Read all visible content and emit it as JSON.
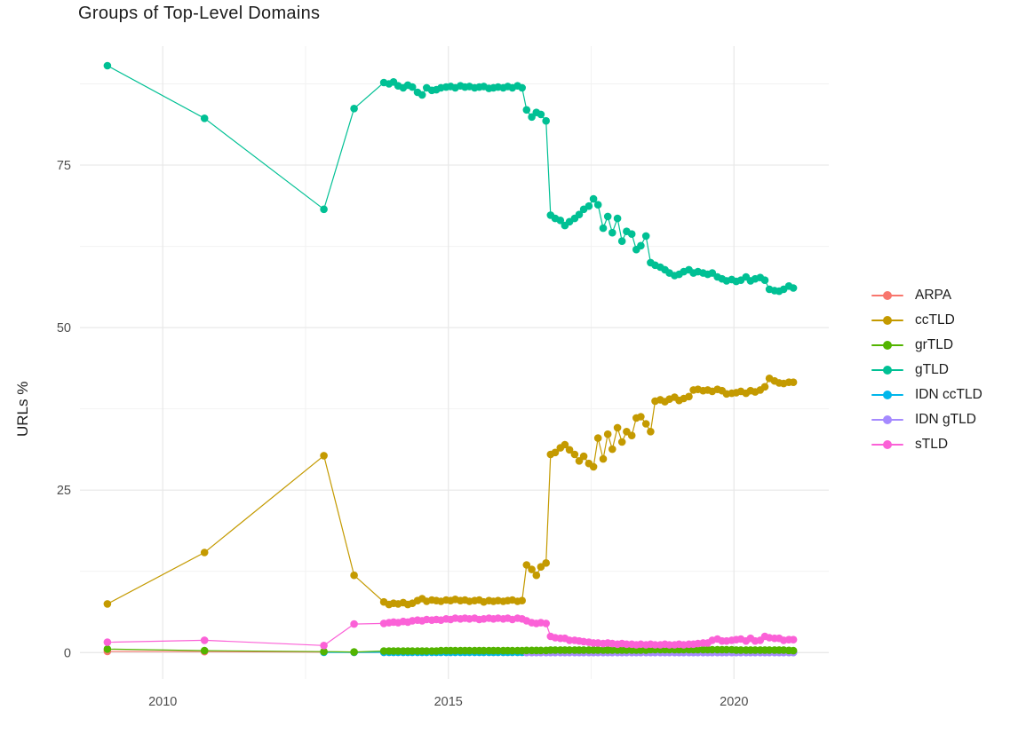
{
  "chart_data": {
    "type": "line",
    "title": "Groups of Top-Level Domains",
    "xlabel": "",
    "ylabel": "URLs %",
    "x_tick_labels": [
      "2010",
      "2015",
      "2020"
    ],
    "x_tick_values": [
      2010,
      2015,
      2020
    ],
    "y_tick_labels": [
      "0",
      "25",
      "50",
      "75"
    ],
    "y_tick_values": [
      0,
      25,
      50,
      75
    ],
    "xlim": [
      2008.55,
      2021.66
    ],
    "ylim": [
      -4.05,
      93.3
    ],
    "grid": "major+minor",
    "legend_position": "right",
    "x_early": [
      2009.03,
      2010.73,
      2012.82,
      2013.35
    ],
    "x_dense": [
      2013.87,
      2013.96,
      2014.04,
      2014.12,
      2014.21,
      2014.29,
      2014.37,
      2014.46,
      2014.54,
      2014.62,
      2014.71,
      2014.79,
      2014.87,
      2014.96,
      2015.04,
      2015.12,
      2015.21,
      2015.29,
      2015.37,
      2015.46,
      2015.54,
      2015.62,
      2015.71,
      2015.79,
      2015.87,
      2015.96,
      2016.04,
      2016.12,
      2016.21,
      2016.29,
      2016.37,
      2016.46,
      2016.54,
      2016.62,
      2016.71,
      2016.79,
      2016.87,
      2016.96,
      2017.04,
      2017.12,
      2017.21,
      2017.29,
      2017.37,
      2017.46,
      2017.54,
      2017.62,
      2017.71,
      2017.79,
      2017.87,
      2017.96,
      2018.04,
      2018.12,
      2018.21,
      2018.29,
      2018.37,
      2018.46,
      2018.54,
      2018.62,
      2018.71,
      2018.79,
      2018.87,
      2018.96,
      2019.04,
      2019.12,
      2019.21,
      2019.29,
      2019.37,
      2019.46,
      2019.54,
      2019.62,
      2019.71,
      2019.79,
      2019.87,
      2019.96,
      2020.04,
      2020.12,
      2020.21,
      2020.29,
      2020.37,
      2020.46,
      2020.54,
      2020.62,
      2020.71,
      2020.79,
      2020.87,
      2020.96,
      2021.04
    ],
    "series": [
      {
        "name": "ARPA",
        "color": "#F8766D",
        "y_early": [
          0.2,
          0.15,
          0.1,
          0.05
        ],
        "y_dense": [
          0.05,
          0.05,
          0.05,
          0.05,
          0.05,
          0.05,
          0.05,
          0.05,
          0.05,
          0.05,
          0.05,
          0.05,
          0.05,
          0.05,
          0.05,
          0.05,
          0.05,
          0.05,
          0.05,
          0.05,
          0.05,
          0.05,
          0.05,
          0.05,
          0.05,
          0.05,
          0.05,
          0.05,
          0.05,
          0.05,
          0.05,
          0.05,
          0.05,
          0.05,
          0.05,
          0.05,
          0.05,
          0.05,
          0.05,
          0.05,
          0.05,
          0.05,
          0.05,
          0.05,
          0.05,
          0.05,
          0.05,
          0.05,
          0.05,
          0.05,
          0.05,
          0.05,
          0.05,
          0.05,
          0.05,
          0.05,
          0.05,
          0.05,
          0.05,
          0.05,
          0.05,
          0.05,
          0.05,
          0.05,
          0.05,
          0.05,
          0.05,
          0.05,
          0.05,
          0.05,
          0.05,
          0.05,
          0.05,
          0.05,
          0.05,
          0.05,
          0.05,
          0.05,
          0.05,
          0.05,
          0.05,
          0.05,
          0.05,
          0.05,
          0.05,
          0.05,
          0.05
        ]
      },
      {
        "name": "ccTLD",
        "color": "#C49A00",
        "y_early": [
          7.5,
          15.4,
          30.3,
          11.9
        ],
        "y_dense": [
          7.8,
          7.4,
          7.6,
          7.5,
          7.7,
          7.4,
          7.6,
          8.0,
          8.3,
          7.9,
          8.1,
          8.0,
          7.9,
          8.1,
          8.0,
          8.2,
          8.0,
          8.1,
          7.9,
          8.0,
          8.1,
          7.8,
          8.0,
          7.9,
          8.0,
          7.9,
          8.0,
          8.1,
          7.9,
          8.0,
          13.5,
          12.8,
          11.9,
          13.2,
          13.8,
          30.5,
          30.8,
          31.5,
          32.0,
          31.2,
          30.5,
          29.5,
          30.2,
          29.1,
          28.6,
          33.0,
          29.8,
          33.6,
          31.3,
          34.6,
          32.4,
          34.0,
          33.4,
          36.1,
          36.3,
          35.2,
          34.0,
          38.7,
          38.9,
          38.6,
          39.0,
          39.3,
          38.8,
          39.1,
          39.4,
          40.4,
          40.5,
          40.3,
          40.4,
          40.2,
          40.5,
          40.3,
          39.8,
          39.9,
          40.0,
          40.2,
          39.9,
          40.3,
          40.1,
          40.4,
          40.9,
          42.2,
          41.8,
          41.5,
          41.4,
          41.6,
          41.6
        ]
      },
      {
        "name": "grTLD",
        "color": "#53B400",
        "y_early": [
          0.55,
          0.3,
          0.15,
          0.1
        ],
        "y_dense": [
          0.25,
          0.25,
          0.25,
          0.25,
          0.25,
          0.25,
          0.25,
          0.25,
          0.25,
          0.25,
          0.25,
          0.25,
          0.3,
          0.3,
          0.3,
          0.3,
          0.3,
          0.3,
          0.3,
          0.3,
          0.3,
          0.3,
          0.3,
          0.3,
          0.3,
          0.3,
          0.3,
          0.3,
          0.3,
          0.3,
          0.35,
          0.35,
          0.35,
          0.35,
          0.35,
          0.4,
          0.4,
          0.4,
          0.4,
          0.4,
          0.4,
          0.4,
          0.4,
          0.4,
          0.4,
          0.4,
          0.4,
          0.4,
          0.4,
          0.4,
          0.4,
          0.4,
          0.4,
          0.4,
          0.4,
          0.4,
          0.45,
          0.45,
          0.45,
          0.45,
          0.45,
          0.45,
          0.45,
          0.45,
          0.45,
          0.45,
          0.45,
          0.45,
          0.45,
          0.45,
          0.45,
          0.45,
          0.45,
          0.45,
          0.4,
          0.4,
          0.4,
          0.4,
          0.4,
          0.4,
          0.4,
          0.4,
          0.4,
          0.4,
          0.4,
          0.35,
          0.3
        ]
      },
      {
        "name": "gTLD",
        "color": "#00C094",
        "y_early": [
          90.3,
          82.2,
          68.2,
          83.7
        ],
        "y_dense": [
          87.7,
          87.5,
          87.8,
          87.2,
          86.9,
          87.3,
          87.0,
          86.2,
          85.8,
          86.9,
          86.5,
          86.6,
          86.9,
          87.0,
          87.1,
          86.9,
          87.2,
          87.0,
          87.1,
          86.9,
          87.0,
          87.1,
          86.8,
          86.9,
          87.0,
          86.9,
          87.1,
          86.9,
          87.2,
          86.9,
          83.5,
          82.4,
          83.1,
          82.8,
          81.8,
          67.3,
          66.8,
          66.5,
          65.7,
          66.3,
          66.8,
          67.4,
          68.2,
          68.7,
          69.8,
          68.9,
          65.3,
          67.1,
          64.6,
          66.8,
          63.3,
          64.8,
          64.4,
          62.0,
          62.6,
          64.1,
          60.0,
          59.6,
          59.3,
          58.9,
          58.4,
          58.0,
          58.2,
          58.6,
          58.9,
          58.4,
          58.6,
          58.4,
          58.2,
          58.4,
          57.8,
          57.5,
          57.2,
          57.4,
          57.1,
          57.3,
          57.8,
          57.2,
          57.5,
          57.7,
          57.3,
          55.9,
          55.7,
          55.6,
          55.9,
          56.4,
          56.1
        ]
      },
      {
        "name": "IDN ccTLD",
        "color": "#00B6EB",
        "y_early": [
          null,
          null,
          0.05,
          0.05
        ],
        "y_dense": [
          0.05,
          0.05,
          0.05,
          0.05,
          0.05,
          0.05,
          0.05,
          0.05,
          0.05,
          0.05,
          0.05,
          0.05,
          0.05,
          0.05,
          0.05,
          0.05,
          0.05,
          0.05,
          0.05,
          0.05,
          0.05,
          0.05,
          0.05,
          0.05,
          0.05,
          0.05,
          0.05,
          0.05,
          0.05,
          0.05,
          0.05,
          0.05,
          0.05,
          0.05,
          0.05,
          0.05,
          0.05,
          0.05,
          0.05,
          0.05,
          0.05,
          0.05,
          0.05,
          0.05,
          0.05,
          0.05,
          0.05,
          0.05,
          0.05,
          0.05,
          0.05,
          0.05,
          0.05,
          0.05,
          0.05,
          0.05,
          0.05,
          0.05,
          0.05,
          0.05,
          0.05,
          0.05,
          0.05,
          0.05,
          0.05,
          0.05,
          0.05,
          0.05,
          0.05,
          0.05,
          0.05,
          0.05,
          0.05,
          0.05,
          0.05,
          0.05,
          0.05,
          0.05,
          0.05,
          0.05,
          0.05,
          0.05,
          0.05,
          0.05,
          0.05,
          0.05,
          0.05
        ]
      },
      {
        "name": "IDN gTLD",
        "color": "#A58AFF",
        "y_early": [
          null,
          null,
          null,
          null
        ],
        "y_dense": [
          null,
          null,
          null,
          null,
          null,
          null,
          null,
          null,
          null,
          null,
          null,
          null,
          null,
          null,
          null,
          null,
          null,
          null,
          null,
          null,
          null,
          null,
          null,
          null,
          null,
          null,
          null,
          null,
          null,
          null,
          0.02,
          0.02,
          0.02,
          0.02,
          0.02,
          0.02,
          0.02,
          0.02,
          0.02,
          0.02,
          0.02,
          0.02,
          0.02,
          0.02,
          0.02,
          0.02,
          0.02,
          0.02,
          0.02,
          0.02,
          0.02,
          0.02,
          0.02,
          0.02,
          0.02,
          0.02,
          0.02,
          0.02,
          0.02,
          0.02,
          0.02,
          0.02,
          0.02,
          0.02,
          0.02,
          0.02,
          0.02,
          0.02,
          0.02,
          0.02,
          0.02,
          0.02,
          0.02,
          0.02,
          0.02,
          0.02,
          0.02,
          0.02,
          0.02,
          0.02,
          0.02,
          0.02,
          0.02,
          0.02,
          0.02,
          0.02,
          0.02
        ]
      },
      {
        "name": "sTLD",
        "color": "#FB61D7",
        "y_early": [
          1.6,
          1.9,
          1.1,
          4.4
        ],
        "y_dense": [
          4.5,
          4.6,
          4.7,
          4.6,
          4.8,
          4.7,
          4.9,
          5.0,
          4.9,
          5.1,
          5.0,
          5.1,
          5.0,
          5.2,
          5.1,
          5.3,
          5.2,
          5.3,
          5.2,
          5.3,
          5.1,
          5.2,
          5.3,
          5.2,
          5.3,
          5.2,
          5.3,
          5.1,
          5.3,
          5.2,
          4.9,
          4.6,
          4.5,
          4.6,
          4.5,
          2.5,
          2.3,
          2.2,
          2.2,
          1.9,
          1.9,
          1.8,
          1.7,
          1.6,
          1.5,
          1.5,
          1.4,
          1.5,
          1.4,
          1.3,
          1.4,
          1.3,
          1.3,
          1.2,
          1.3,
          1.2,
          1.3,
          1.2,
          1.2,
          1.3,
          1.2,
          1.2,
          1.3,
          1.2,
          1.3,
          1.3,
          1.4,
          1.5,
          1.5,
          1.9,
          2.1,
          1.8,
          1.8,
          1.9,
          2.0,
          2.1,
          1.8,
          2.2,
          1.8,
          1.9,
          2.5,
          2.3,
          2.2,
          2.2,
          1.9,
          2.0,
          2.0
        ]
      }
    ]
  }
}
